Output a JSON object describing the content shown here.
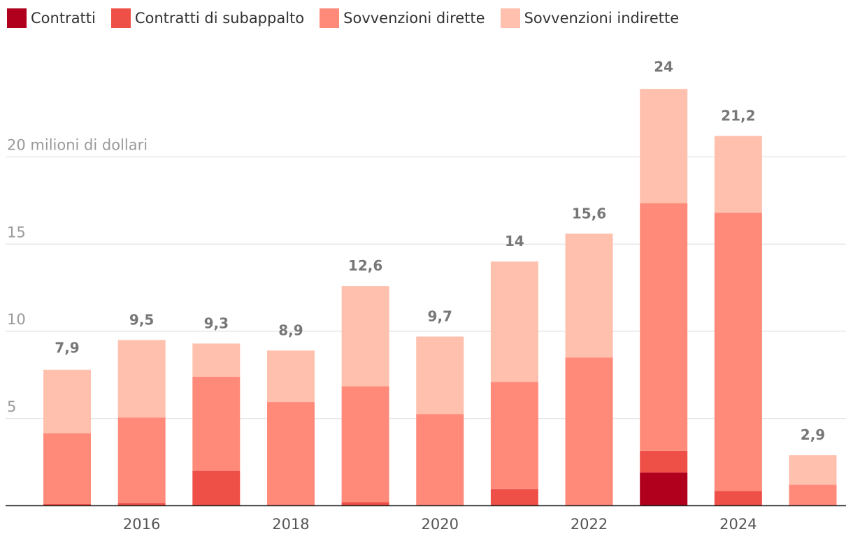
{
  "chart_data": {
    "type": "bar",
    "stacked": true,
    "categories": [
      "2015",
      "2016",
      "2017",
      "2018",
      "2019",
      "2020",
      "2021",
      "2022",
      "2023",
      "2024",
      "2025"
    ],
    "x_tick_labels": [
      {
        "category": "2016",
        "label": "2016"
      },
      {
        "category": "2018",
        "label": "2018"
      },
      {
        "category": "2020",
        "label": "2020"
      },
      {
        "category": "2022",
        "label": "2022"
      },
      {
        "category": "2024",
        "label": "2024"
      }
    ],
    "series": [
      {
        "name": "Contratti",
        "color": "#b0001e",
        "values": [
          0,
          0,
          0,
          0,
          0,
          0,
          0,
          0,
          1.9,
          0,
          0
        ]
      },
      {
        "name": "Contratti di subappalto",
        "color": "#ee5048",
        "values": [
          0.1,
          0.15,
          2.0,
          0.05,
          0.2,
          0,
          0.95,
          0,
          1.25,
          0.85,
          0
        ]
      },
      {
        "name": "Sovvenzioni dirette",
        "color": "#ff8a7a",
        "values": [
          4.05,
          4.9,
          5.4,
          5.9,
          6.65,
          5.25,
          6.15,
          8.5,
          14.2,
          15.95,
          1.2
        ]
      },
      {
        "name": "Sovvenzioni indirette",
        "color": "#ffc0ae",
        "values": [
          3.65,
          4.45,
          1.9,
          2.95,
          5.75,
          4.45,
          6.9,
          7.1,
          6.55,
          4.4,
          1.7
        ]
      }
    ],
    "totals": [
      7.9,
      9.5,
      9.3,
      8.9,
      12.6,
      9.7,
      14,
      15.6,
      24,
      21.2,
      2.9
    ],
    "total_labels": [
      "7,9",
      "9,5",
      "9,3",
      "8,9",
      "12,6",
      "9,7",
      "14",
      "15,6",
      "24",
      "21,2",
      "2,9"
    ],
    "y_ticks": [
      {
        "value": 5,
        "label": "5"
      },
      {
        "value": 10,
        "label": "10"
      },
      {
        "value": 15,
        "label": "15"
      },
      {
        "value": 20,
        "label": "20 milioni di dollari"
      }
    ],
    "ylim": [
      0,
      24
    ],
    "grid": true,
    "legend_position": "top-left",
    "title": "",
    "xlabel": "",
    "ylabel": ""
  }
}
